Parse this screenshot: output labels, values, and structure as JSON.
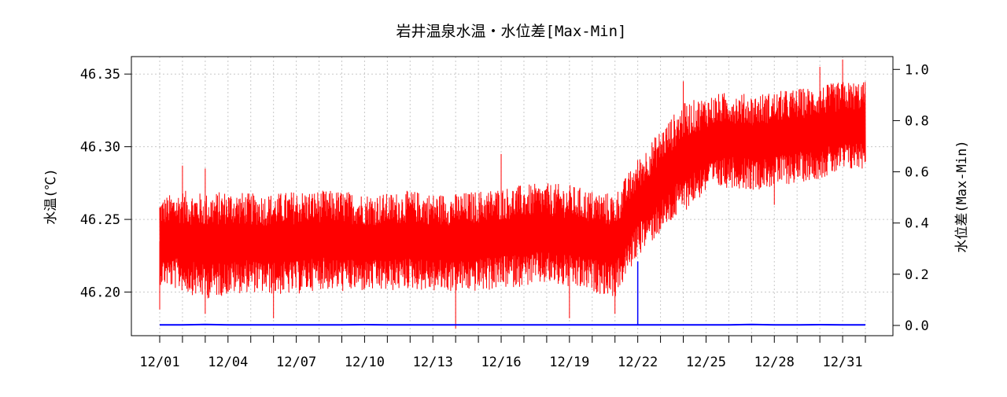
{
  "chart_data": {
    "type": "line",
    "title": "岩井温泉水温・水位差[Max-Min]",
    "ylabel": "水温(℃)",
    "y2label": "水位差(Max-Min)",
    "xlabel": "",
    "grid": true,
    "xlim": [
      "12/01",
      "12/32"
    ],
    "ylim": [
      46.17,
      46.362
    ],
    "y2lim": [
      -0.04,
      1.05
    ],
    "x_ticks": [
      "12/01",
      "12/02",
      "12/03",
      "12/04",
      "12/05",
      "12/06",
      "12/07",
      "12/08",
      "12/09",
      "12/10",
      "12/11",
      "12/12",
      "12/13",
      "12/14",
      "12/15",
      "12/16",
      "12/17",
      "12/18",
      "12/19",
      "12/20",
      "12/21",
      "12/22",
      "12/23",
      "12/24",
      "12/25",
      "12/26",
      "12/27",
      "12/28",
      "12/29",
      "12/30",
      "12/31",
      "12/32"
    ],
    "x_tick_labels": [
      "12/01",
      "12/04",
      "12/07",
      "12/10",
      "12/13",
      "12/16",
      "12/19",
      "12/22",
      "12/25",
      "12/28",
      "12/31"
    ],
    "y_ticks": [
      "46.20",
      "46.25",
      "46.30",
      "46.35"
    ],
    "y2_ticks": [
      "0.0",
      "0.2",
      "0.4",
      "0.6",
      "0.8",
      "1.0"
    ],
    "series": [
      {
        "axis": "left",
        "color": "#ff0000",
        "x": [
          "12/01",
          "12/02",
          "12/03",
          "12/04",
          "12/05",
          "12/06",
          "12/07",
          "12/08",
          "12/09",
          "12/10",
          "12/11",
          "12/12",
          "12/13",
          "12/14",
          "12/15",
          "12/16",
          "12/17",
          "12/18",
          "12/19",
          "12/20",
          "12/21",
          "12/22",
          "12/23",
          "12/24",
          "12/25",
          "12/26",
          "12/27",
          "12/28",
          "12/29",
          "12/30",
          "12/31",
          "12/32"
        ],
        "low": [
          46.205,
          46.2,
          46.195,
          46.198,
          46.2,
          46.198,
          46.198,
          46.202,
          46.2,
          46.2,
          46.2,
          46.202,
          46.2,
          46.2,
          46.2,
          46.202,
          46.204,
          46.205,
          46.202,
          46.2,
          46.196,
          46.225,
          46.24,
          46.255,
          46.268,
          46.272,
          46.27,
          46.272,
          46.275,
          46.278,
          46.282,
          46.285
        ],
        "high": [
          46.265,
          46.27,
          46.268,
          46.27,
          46.268,
          46.268,
          46.27,
          46.27,
          46.27,
          46.268,
          46.268,
          46.27,
          46.268,
          46.268,
          46.27,
          46.272,
          46.274,
          46.275,
          46.274,
          46.27,
          46.268,
          46.292,
          46.312,
          46.33,
          46.335,
          46.338,
          46.336,
          46.338,
          46.34,
          46.342,
          46.345,
          46.345
        ],
        "min_spikes": [
          [
            "12/01",
            46.188
          ],
          [
            "12/03",
            46.185
          ],
          [
            "12/06",
            46.182
          ],
          [
            "12/14",
            46.175
          ],
          [
            "12/19",
            46.182
          ],
          [
            "12/21",
            46.185
          ],
          [
            "12/28",
            46.26
          ]
        ],
        "max_spikes": [
          [
            "12/02",
            46.287
          ],
          [
            "12/03",
            46.285
          ],
          [
            "12/16",
            46.295
          ],
          [
            "12/24",
            46.345
          ],
          [
            "12/30",
            46.355
          ],
          [
            "12/31",
            46.36
          ]
        ]
      },
      {
        "axis": "right",
        "color": "#0000ff",
        "x": [
          "12/01",
          "12/02",
          "12/03",
          "12/04",
          "12/05",
          "12/06",
          "12/07",
          "12/08",
          "12/09",
          "12/10",
          "12/11",
          "12/12",
          "12/13",
          "12/14",
          "12/15",
          "12/16",
          "12/17",
          "12/18",
          "12/19",
          "12/20",
          "12/21",
          "12/22",
          "12/23",
          "12/24",
          "12/25",
          "12/26",
          "12/27",
          "12/28",
          "12/29",
          "12/30",
          "12/31",
          "12/32"
        ],
        "values": [
          0.002,
          0.002,
          0.004,
          0.002,
          0.002,
          0.002,
          0.002,
          0.002,
          0.002,
          0.003,
          0.002,
          0.002,
          0.002,
          0.002,
          0.002,
          0.002,
          0.002,
          0.002,
          0.002,
          0.002,
          0.002,
          0.002,
          0.002,
          0.002,
          0.002,
          0.002,
          0.004,
          0.002,
          0.002,
          0.003,
          0.002,
          0.002
        ],
        "spikes": [
          [
            "12/22",
            0.25
          ]
        ]
      }
    ]
  }
}
